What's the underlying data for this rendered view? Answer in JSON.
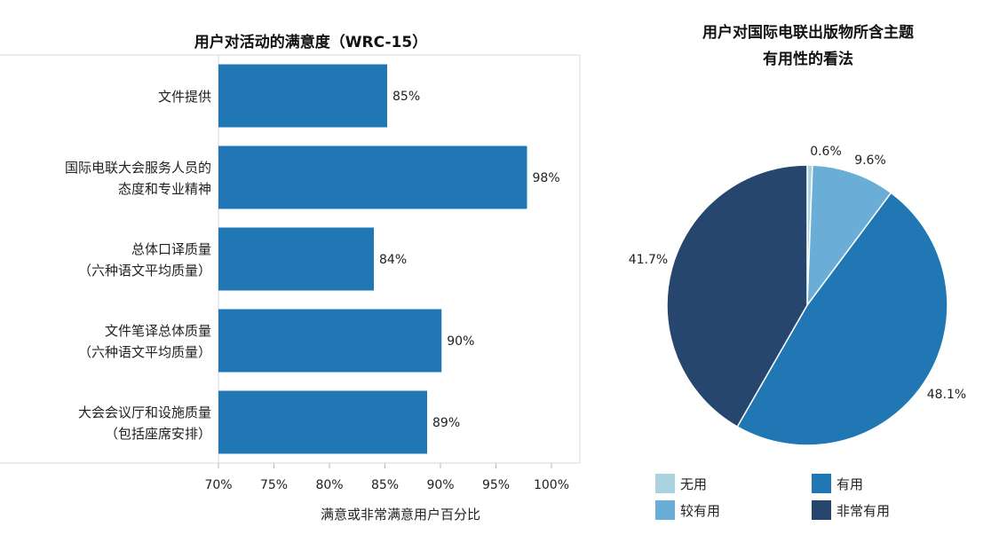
{
  "colors": {
    "bar": "#2077b4",
    "axis": "#d9d9d9",
    "pie": [
      "#aad3df",
      "#6aadd6",
      "#2077b4",
      "#27466e"
    ]
  },
  "chart_data": [
    {
      "type": "bar",
      "orientation": "horizontal",
      "title": "用户对活动的满意度（WRC-15）",
      "xlabel": "满意或非常满意用户百分比",
      "xlim": [
        70,
        100
      ],
      "xticks": [
        "70%",
        "75%",
        "80%",
        "85%",
        "90%",
        "95%",
        "100%"
      ],
      "xtick_values": [
        70,
        75,
        80,
        85,
        90,
        95,
        100
      ],
      "categories": [
        [
          "文件提供"
        ],
        [
          "国际电联大会服务人员的",
          "态度和专业精神"
        ],
        [
          "总体口译质量",
          "（六种语文平均质量）"
        ],
        [
          "文件笔译总体质量",
          "（六种语文平均质量）"
        ],
        [
          "大会会议厅和设施质量",
          "（包括座席安排）"
        ]
      ],
      "values": [
        85.2,
        97.8,
        84.0,
        90.1,
        88.8
      ],
      "data_labels": [
        "85%",
        "98%",
        "84%",
        "90%",
        "89%"
      ]
    },
    {
      "type": "pie",
      "title": [
        "用户对国际电联出版物所含主题",
        "有用性的看法"
      ],
      "slices": [
        {
          "name": "无用",
          "value": 0.6,
          "label": "0.6%"
        },
        {
          "name": "较有用",
          "value": 9.6,
          "label": "9.6%"
        },
        {
          "name": "有用",
          "value": 48.1,
          "label": "48.1%"
        },
        {
          "name": "非常有用",
          "value": 41.7,
          "label": "41.7%"
        }
      ],
      "legend": [
        "无用",
        "有用",
        "较有用",
        "非常有用"
      ],
      "legend_placement": "bottom"
    }
  ]
}
